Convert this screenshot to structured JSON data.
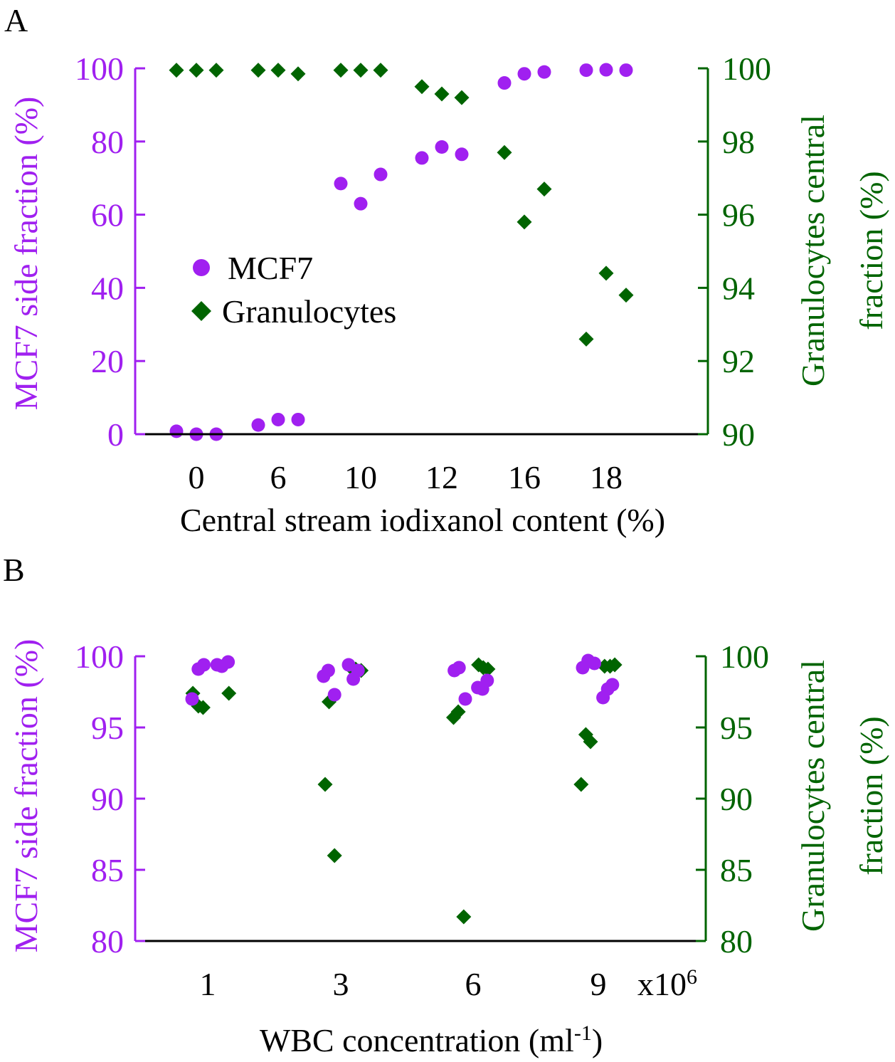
{
  "colors": {
    "mcf7": "#A020F0",
    "granulocytes": "#006400",
    "axis": "#000000"
  },
  "legend": {
    "mcf7": "MCF7",
    "granulocytes": "Granulocytes"
  },
  "chart_data": [
    {
      "id": "A",
      "panel_label": "A",
      "type": "scatter",
      "xlabel": "Central stream iodixanol content (%)",
      "ylabel_left": "MCF7 side fraction (%)",
      "ylabel_right_line1": "Granulocytes central",
      "ylabel_right_line2": "fraction (%)",
      "x_categories": [
        "0",
        "6",
        "10",
        "12",
        "16",
        "18"
      ],
      "ylim_left": [
        0,
        100
      ],
      "yticks_left": [
        "0",
        "20",
        "40",
        "60",
        "80",
        "100"
      ],
      "ylim_right": [
        90,
        100
      ],
      "yticks_right": [
        "90",
        "92",
        "94",
        "96",
        "98",
        "100"
      ],
      "series": [
        {
          "name": "MCF7",
          "axis": "left",
          "marker": "circle",
          "points": [
            {
              "x": "0",
              "offset": -1,
              "y": 0.8
            },
            {
              "x": "0",
              "offset": 0,
              "y": 0.0
            },
            {
              "x": "0",
              "offset": 1,
              "y": 0.0
            },
            {
              "x": "6",
              "offset": -1,
              "y": 2.5
            },
            {
              "x": "6",
              "offset": 0,
              "y": 4.0
            },
            {
              "x": "6",
              "offset": 1,
              "y": 4.0
            },
            {
              "x": "10",
              "offset": -1,
              "y": 68.5
            },
            {
              "x": "10",
              "offset": 0,
              "y": 63.0
            },
            {
              "x": "10",
              "offset": 1,
              "y": 71.0
            },
            {
              "x": "12",
              "offset": -1,
              "y": 75.5
            },
            {
              "x": "12",
              "offset": 0,
              "y": 78.5
            },
            {
              "x": "12",
              "offset": 1,
              "y": 76.5
            },
            {
              "x": "16",
              "offset": -1,
              "y": 96.0
            },
            {
              "x": "16",
              "offset": 0,
              "y": 98.5
            },
            {
              "x": "16",
              "offset": 1,
              "y": 99.0
            },
            {
              "x": "18",
              "offset": -1,
              "y": 99.5
            },
            {
              "x": "18",
              "offset": 0,
              "y": 99.6
            },
            {
              "x": "18",
              "offset": 1,
              "y": 99.5
            }
          ]
        },
        {
          "name": "Granulocytes",
          "axis": "right",
          "marker": "diamond",
          "points": [
            {
              "x": "0",
              "offset": -1,
              "y": 99.95
            },
            {
              "x": "0",
              "offset": 0,
              "y": 99.95
            },
            {
              "x": "0",
              "offset": 1,
              "y": 99.95
            },
            {
              "x": "6",
              "offset": -1,
              "y": 99.95
            },
            {
              "x": "6",
              "offset": 0,
              "y": 99.95
            },
            {
              "x": "6",
              "offset": 1,
              "y": 99.85
            },
            {
              "x": "10",
              "offset": -1,
              "y": 99.95
            },
            {
              "x": "10",
              "offset": 0,
              "y": 99.95
            },
            {
              "x": "10",
              "offset": 1,
              "y": 99.95
            },
            {
              "x": "12",
              "offset": -1,
              "y": 99.5
            },
            {
              "x": "12",
              "offset": 0,
              "y": 99.3
            },
            {
              "x": "12",
              "offset": 1,
              "y": 99.2
            },
            {
              "x": "16",
              "offset": -1,
              "y": 97.7
            },
            {
              "x": "16",
              "offset": 0,
              "y": 95.8
            },
            {
              "x": "16",
              "offset": 1,
              "y": 96.7
            },
            {
              "x": "18",
              "offset": -1,
              "y": 92.6
            },
            {
              "x": "18",
              "offset": 0,
              "y": 94.4
            },
            {
              "x": "18",
              "offset": 1,
              "y": 93.8
            }
          ]
        }
      ]
    },
    {
      "id": "B",
      "panel_label": "B",
      "type": "scatter",
      "xlabel_main": "WBC concentration (ml",
      "xlabel_sup": "-1",
      "xlabel_close": ")",
      "ylabel_left": "MCF7 side fraction (%)",
      "ylabel_right_line1": "Granulocytes central",
      "ylabel_right_line2": "fraction (%)",
      "x_categories": [
        "1",
        "3",
        "6",
        "9"
      ],
      "x_multiplier_base": "x10",
      "x_multiplier_exp": "6",
      "ylim_left": [
        80,
        100
      ],
      "yticks_left": [
        "80",
        "85",
        "90",
        "95",
        "100"
      ],
      "ylim_right": [
        80,
        100
      ],
      "yticks_right": [
        "80",
        "85",
        "90",
        "95",
        "100"
      ],
      "series": [
        {
          "name": "MCF7",
          "axis": "left",
          "marker": "circle",
          "points": [
            {
              "x": "1",
              "offset": -1.0,
              "y": 97.0
            },
            {
              "x": "1",
              "offset": -0.6,
              "y": 99.1
            },
            {
              "x": "1",
              "offset": -0.25,
              "y": 99.4
            },
            {
              "x": "1",
              "offset": 0.6,
              "y": 99.4
            },
            {
              "x": "1",
              "offset": 0.9,
              "y": 99.3
            },
            {
              "x": "1",
              "offset": 1.3,
              "y": 99.6
            },
            {
              "x": "3",
              "offset": -1.1,
              "y": 98.6
            },
            {
              "x": "3",
              "offset": -0.8,
              "y": 99.0
            },
            {
              "x": "3",
              "offset": -0.4,
              "y": 97.3
            },
            {
              "x": "3",
              "offset": 0.5,
              "y": 99.4
            },
            {
              "x": "3",
              "offset": 0.8,
              "y": 98.4
            },
            {
              "x": "3",
              "offset": 1.1,
              "y": 99.0
            },
            {
              "x": "6",
              "offset": -1.2,
              "y": 99.0
            },
            {
              "x": "6",
              "offset": -0.9,
              "y": 99.2
            },
            {
              "x": "6",
              "offset": -0.5,
              "y": 97.0
            },
            {
              "x": "6",
              "offset": 0.3,
              "y": 97.8
            },
            {
              "x": "6",
              "offset": 0.6,
              "y": 97.7
            },
            {
              "x": "6",
              "offset": 0.9,
              "y": 98.3
            },
            {
              "x": "9",
              "offset": -1.0,
              "y": 99.2
            },
            {
              "x": "9",
              "offset": -0.65,
              "y": 99.7
            },
            {
              "x": "9",
              "offset": -0.25,
              "y": 99.5
            },
            {
              "x": "9",
              "offset": 0.3,
              "y": 97.1
            },
            {
              "x": "9",
              "offset": 0.6,
              "y": 97.7
            },
            {
              "x": "9",
              "offset": 0.9,
              "y": 98.0
            }
          ]
        },
        {
          "name": "Granulocytes",
          "axis": "right",
          "marker": "diamond",
          "points": [
            {
              "x": "1",
              "offset": -0.95,
              "y": 97.4
            },
            {
              "x": "1",
              "offset": -0.6,
              "y": 96.5
            },
            {
              "x": "1",
              "offset": -0.3,
              "y": 96.4
            },
            {
              "x": "1",
              "offset": 1.35,
              "y": 97.4
            },
            {
              "x": "3",
              "offset": -1.0,
              "y": 91.0
            },
            {
              "x": "3",
              "offset": -0.75,
              "y": 96.8
            },
            {
              "x": "3",
              "offset": -0.4,
              "y": 86.0
            },
            {
              "x": "3",
              "offset": 0.65,
              "y": 99.2
            },
            {
              "x": "3",
              "offset": 0.95,
              "y": 99.1
            },
            {
              "x": "3",
              "offset": 1.3,
              "y": 99.0
            },
            {
              "x": "6",
              "offset": -1.25,
              "y": 95.7
            },
            {
              "x": "6",
              "offset": -0.95,
              "y": 96.1
            },
            {
              "x": "6",
              "offset": -0.6,
              "y": 81.7
            },
            {
              "x": "6",
              "offset": 0.35,
              "y": 99.4
            },
            {
              "x": "6",
              "offset": 0.65,
              "y": 99.2
            },
            {
              "x": "6",
              "offset": 0.95,
              "y": 99.1
            },
            {
              "x": "9",
              "offset": -1.1,
              "y": 91.0
            },
            {
              "x": "9",
              "offset": -0.8,
              "y": 94.5
            },
            {
              "x": "9",
              "offset": -0.5,
              "y": 94.0
            },
            {
              "x": "9",
              "offset": 0.4,
              "y": 99.3
            },
            {
              "x": "9",
              "offset": 0.75,
              "y": 99.3
            },
            {
              "x": "9",
              "offset": 1.05,
              "y": 99.4
            }
          ]
        }
      ]
    }
  ]
}
